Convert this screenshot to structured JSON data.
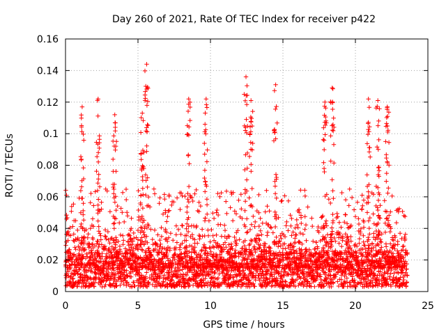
{
  "chart_data": {
    "type": "scatter",
    "title": "Day 260 of 2021, Rate Of TEC Index for receiver p422",
    "xlabel": "GPS time / hours",
    "ylabel": "ROTI / TECUs",
    "xlim": [
      0,
      25
    ],
    "ylim": [
      0,
      0.16
    ],
    "x_ticks": [
      0,
      5,
      10,
      15,
      20,
      25
    ],
    "x_tick_labels": [
      "0",
      "5",
      "10",
      "15",
      "20",
      "25"
    ],
    "y_ticks": [
      0,
      0.02,
      0.04,
      0.06,
      0.08,
      0.1,
      0.12,
      0.14,
      0.16
    ],
    "y_tick_labels": [
      "0",
      "0.02",
      "0.04",
      "0.06",
      "0.08",
      "0.1",
      "0.12",
      "0.14",
      "0.16"
    ],
    "grid": true,
    "marker": "+",
    "color": "#ff0000",
    "series": [
      {
        "name": "p422",
        "time_range_hours": [
          0,
          23.6
        ],
        "baseline_range": [
          0.003,
          0.025
        ],
        "peaks": [
          {
            "x": 1.15,
            "y": 0.117
          },
          {
            "x": 2.25,
            "y": 0.122
          },
          {
            "x": 3.4,
            "y": 0.112
          },
          {
            "x": 5.3,
            "y": 0.113
          },
          {
            "x": 5.6,
            "y": 0.144
          },
          {
            "x": 8.5,
            "y": 0.122
          },
          {
            "x": 9.7,
            "y": 0.122
          },
          {
            "x": 12.45,
            "y": 0.136
          },
          {
            "x": 12.8,
            "y": 0.121
          },
          {
            "x": 14.5,
            "y": 0.131
          },
          {
            "x": 17.9,
            "y": 0.12
          },
          {
            "x": 18.4,
            "y": 0.129
          },
          {
            "x": 20.9,
            "y": 0.122
          },
          {
            "x": 21.55,
            "y": 0.121
          },
          {
            "x": 22.2,
            "y": 0.117
          }
        ]
      }
    ]
  }
}
